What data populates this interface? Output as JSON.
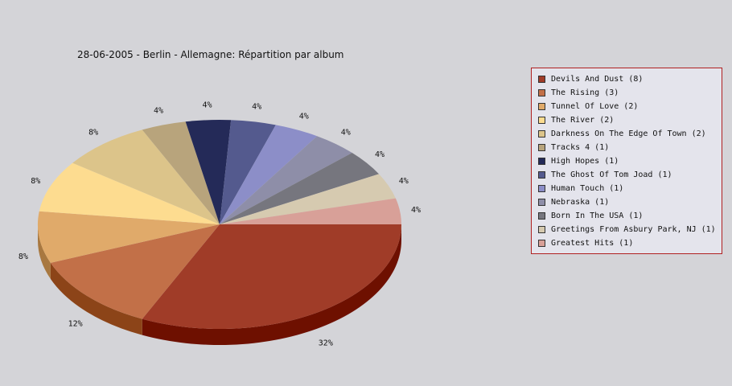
{
  "chart_data": {
    "type": "pie",
    "title": "28-06-2005 - Berlin - Allemagne:  Répartition par album",
    "slices": [
      {
        "label": "Devils And Dust (8)",
        "value": 8,
        "pct_label": "32%",
        "color": "#a03c28",
        "side": "#6e1000"
      },
      {
        "label": "The Rising (3)",
        "value": 3,
        "pct_label": "12%",
        "color": "#c27048",
        "side": "#8c4418"
      },
      {
        "label": "Tunnel Of Love (2)",
        "value": 2,
        "pct_label": "8%",
        "color": "#e0aa6a",
        "side": "#a87840"
      },
      {
        "label": "The River (2)",
        "value": 2,
        "pct_label": "8%",
        "color": "#fddc90",
        "side": "#c8a860"
      },
      {
        "label": "Darkness On The Edge Of Town (2)",
        "value": 2,
        "pct_label": "8%",
        "color": "#dcc48a",
        "side": "#a89060"
      },
      {
        "label": "Tracks 4 (1)",
        "value": 1,
        "pct_label": "4%",
        "color": "#b8a47c",
        "side": "#887450"
      },
      {
        "label": "High Hopes (1)",
        "value": 1,
        "pct_label": "4%",
        "color": "#242a58",
        "side": "#101430"
      },
      {
        "label": "The Ghost Of Tom Joad (1)",
        "value": 1,
        "pct_label": "4%",
        "color": "#545a8e",
        "side": "#30346a"
      },
      {
        "label": "Human Touch (1)",
        "value": 1,
        "pct_label": "4%",
        "color": "#8c8ec8",
        "side": "#5e609a"
      },
      {
        "label": "Nebraska (1)",
        "value": 1,
        "pct_label": "4%",
        "color": "#8e8ea8",
        "side": "#60607c"
      },
      {
        "label": "Born In The USA (1)",
        "value": 1,
        "pct_label": "4%",
        "color": "#76767e",
        "side": "#4c4c54"
      },
      {
        "label": "Greetings From Asbury Park, NJ (1)",
        "value": 1,
        "pct_label": "4%",
        "color": "#d6cab0",
        "side": "#a89c80"
      },
      {
        "label": "Greatest Hits (1)",
        "value": 1,
        "pct_label": "4%",
        "color": "#d8a098",
        "side": "#a8706a"
      }
    ],
    "legend_position": "right"
  }
}
